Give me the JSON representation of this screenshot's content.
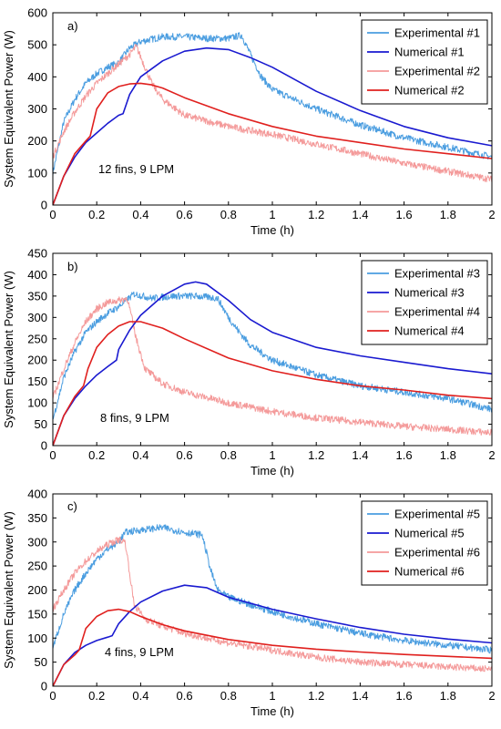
{
  "figure": {
    "panels": [
      {
        "label": "a)",
        "annotation": "12 fins, 9 LPM"
      },
      {
        "label": "b)",
        "annotation": "8 fins, 9 LPM"
      },
      {
        "label": "c)",
        "annotation": "4 fins, 9 LPM"
      }
    ],
    "colors": {
      "experimental_blue": "#4a9de0",
      "numerical_blue": "#1a1ad0",
      "experimental_red": "#f49a9a",
      "numerical_red": "#e0201e"
    }
  },
  "chart_data": [
    {
      "type": "line",
      "panel": "a)",
      "xlabel": "Time (h)",
      "ylabel": "System Equivalent Power (W)",
      "xlim": [
        0,
        2
      ],
      "ylim": [
        0,
        600
      ],
      "xticks": [
        "0",
        "0.2",
        "0.4",
        "0.6",
        "0.8",
        "1",
        "1.2",
        "1.4",
        "1.6",
        "1.8",
        "2"
      ],
      "yticks": [
        "0",
        "100",
        "200",
        "300",
        "400",
        "500",
        "600"
      ],
      "legend_position": "top-right",
      "annotation": "12 fins, 9 LPM",
      "series": [
        {
          "name": "Experimental #1",
          "color": "#4a9de0",
          "noisy": true,
          "x": [
            0,
            0.05,
            0.1,
            0.15,
            0.2,
            0.25,
            0.3,
            0.35,
            0.4,
            0.5,
            0.6,
            0.7,
            0.8,
            0.86,
            0.9,
            0.95,
            1.0,
            1.2,
            1.4,
            1.6,
            1.8,
            2.0
          ],
          "y": [
            100,
            260,
            330,
            380,
            410,
            430,
            445,
            490,
            510,
            525,
            525,
            520,
            520,
            530,
            470,
            400,
            360,
            300,
            250,
            210,
            180,
            150
          ]
        },
        {
          "name": "Numerical #1",
          "color": "#1a1ad0",
          "noisy": false,
          "x": [
            0,
            0.05,
            0.1,
            0.15,
            0.2,
            0.25,
            0.3,
            0.32,
            0.35,
            0.4,
            0.5,
            0.6,
            0.7,
            0.8,
            0.9,
            1.0,
            1.2,
            1.4,
            1.6,
            1.8,
            2.0
          ],
          "y": [
            0,
            90,
            150,
            195,
            225,
            255,
            280,
            285,
            345,
            400,
            450,
            480,
            490,
            485,
            460,
            430,
            355,
            295,
            245,
            210,
            185
          ]
        },
        {
          "name": "Experimental #2",
          "color": "#f49a9a",
          "noisy": true,
          "x": [
            0,
            0.05,
            0.1,
            0.15,
            0.2,
            0.25,
            0.3,
            0.35,
            0.38,
            0.42,
            0.45,
            0.5,
            0.6,
            0.8,
            1.0,
            1.2,
            1.4,
            1.6,
            1.8,
            2.0
          ],
          "y": [
            150,
            230,
            290,
            340,
            380,
            410,
            440,
            470,
            495,
            430,
            380,
            330,
            280,
            245,
            220,
            190,
            160,
            130,
            105,
            80
          ]
        },
        {
          "name": "Numerical #2",
          "color": "#e0201e",
          "noisy": false,
          "x": [
            0,
            0.05,
            0.1,
            0.15,
            0.17,
            0.2,
            0.25,
            0.3,
            0.35,
            0.4,
            0.45,
            0.5,
            0.6,
            0.8,
            1.0,
            1.2,
            1.4,
            1.6,
            1.8,
            2.0
          ],
          "y": [
            0,
            90,
            160,
            200,
            215,
            300,
            350,
            370,
            378,
            380,
            375,
            365,
            335,
            285,
            245,
            215,
            195,
            175,
            160,
            145
          ]
        }
      ]
    },
    {
      "type": "line",
      "panel": "b)",
      "xlabel": "Time (h)",
      "ylabel": "System Equivalent Power (W)",
      "xlim": [
        0,
        2
      ],
      "ylim": [
        0,
        450
      ],
      "xticks": [
        "0",
        "0.2",
        "0.4",
        "0.6",
        "0.8",
        "1",
        "1.2",
        "1.4",
        "1.6",
        "1.8",
        "2"
      ],
      "yticks": [
        "0",
        "50",
        "100",
        "150",
        "200",
        "250",
        "300",
        "350",
        "400",
        "450"
      ],
      "legend_position": "top-right",
      "annotation": "8 fins, 9 LPM",
      "series": [
        {
          "name": "Experimental #3",
          "color": "#4a9de0",
          "noisy": true,
          "x": [
            0,
            0.05,
            0.1,
            0.15,
            0.2,
            0.25,
            0.3,
            0.37,
            0.45,
            0.55,
            0.65,
            0.75,
            0.8,
            0.85,
            0.9,
            1.0,
            1.2,
            1.4,
            1.6,
            1.8,
            2.0
          ],
          "y": [
            60,
            160,
            220,
            265,
            290,
            310,
            325,
            355,
            345,
            350,
            350,
            345,
            300,
            265,
            235,
            200,
            165,
            140,
            125,
            110,
            85
          ]
        },
        {
          "name": "Numerical #3",
          "color": "#1a1ad0",
          "noisy": false,
          "x": [
            0,
            0.05,
            0.1,
            0.15,
            0.2,
            0.25,
            0.29,
            0.3,
            0.35,
            0.4,
            0.5,
            0.6,
            0.65,
            0.7,
            0.8,
            0.9,
            1.0,
            1.2,
            1.4,
            1.6,
            1.8,
            2.0
          ],
          "y": [
            0,
            70,
            110,
            140,
            165,
            185,
            200,
            225,
            270,
            305,
            350,
            378,
            383,
            378,
            340,
            295,
            265,
            230,
            210,
            195,
            180,
            168
          ]
        },
        {
          "name": "Experimental #4",
          "color": "#f49a9a",
          "noisy": true,
          "x": [
            0,
            0.05,
            0.1,
            0.15,
            0.2,
            0.25,
            0.3,
            0.34,
            0.38,
            0.42,
            0.5,
            0.6,
            0.8,
            1.0,
            1.2,
            1.4,
            1.6,
            1.8,
            2.0
          ],
          "y": [
            110,
            180,
            240,
            290,
            320,
            335,
            340,
            345,
            250,
            180,
            145,
            125,
            100,
            80,
            65,
            55,
            45,
            38,
            30
          ]
        },
        {
          "name": "Numerical #4",
          "color": "#e0201e",
          "noisy": false,
          "x": [
            0,
            0.05,
            0.1,
            0.14,
            0.16,
            0.2,
            0.25,
            0.3,
            0.35,
            0.4,
            0.5,
            0.6,
            0.8,
            1.0,
            1.2,
            1.4,
            1.6,
            1.8,
            2.0
          ],
          "y": [
            0,
            70,
            115,
            140,
            180,
            230,
            260,
            280,
            290,
            290,
            275,
            250,
            205,
            175,
            155,
            140,
            130,
            118,
            110
          ]
        }
      ]
    },
    {
      "type": "line",
      "panel": "c)",
      "xlabel": "Time (h)",
      "ylabel": "System Equivalent Power (W)",
      "xlim": [
        0,
        2
      ],
      "ylim": [
        0,
        400
      ],
      "xticks": [
        "0",
        "0.2",
        "0.4",
        "0.6",
        "0.8",
        "1",
        "1.2",
        "1.4",
        "1.6",
        "1.8",
        "2"
      ],
      "yticks": [
        "0",
        "50",
        "100",
        "150",
        "200",
        "250",
        "300",
        "350",
        "400"
      ],
      "legend_position": "top-right",
      "annotation": "4 fins, 9 LPM",
      "series": [
        {
          "name": "Experimental #5",
          "color": "#4a9de0",
          "noisy": true,
          "x": [
            0,
            0.05,
            0.1,
            0.15,
            0.2,
            0.25,
            0.3,
            0.33,
            0.4,
            0.5,
            0.6,
            0.68,
            0.72,
            0.75,
            0.8,
            1.0,
            1.2,
            1.4,
            1.6,
            1.8,
            2.0
          ],
          "y": [
            80,
            150,
            200,
            235,
            265,
            285,
            300,
            320,
            325,
            330,
            320,
            315,
            240,
            200,
            185,
            155,
            130,
            110,
            95,
            85,
            75
          ]
        },
        {
          "name": "Numerical #5",
          "color": "#1a1ad0",
          "noisy": false,
          "x": [
            0,
            0.05,
            0.1,
            0.15,
            0.2,
            0.25,
            0.27,
            0.3,
            0.35,
            0.4,
            0.5,
            0.6,
            0.7,
            0.8,
            1.0,
            1.2,
            1.4,
            1.6,
            1.8,
            2.0
          ],
          "y": [
            0,
            45,
            70,
            85,
            95,
            102,
            105,
            130,
            155,
            175,
            198,
            210,
            205,
            185,
            160,
            140,
            122,
            108,
            98,
            90
          ]
        },
        {
          "name": "Experimental #6",
          "color": "#f49a9a",
          "noisy": true,
          "x": [
            0,
            0.05,
            0.1,
            0.15,
            0.2,
            0.25,
            0.3,
            0.33,
            0.37,
            0.42,
            0.5,
            0.6,
            0.8,
            1.0,
            1.2,
            1.4,
            1.6,
            1.8,
            2.0
          ],
          "y": [
            160,
            200,
            235,
            260,
            280,
            295,
            305,
            300,
            170,
            140,
            125,
            110,
            90,
            75,
            60,
            50,
            45,
            40,
            35
          ]
        },
        {
          "name": "Numerical #6",
          "color": "#e0201e",
          "noisy": false,
          "x": [
            0,
            0.05,
            0.1,
            0.12,
            0.15,
            0.2,
            0.25,
            0.3,
            0.35,
            0.4,
            0.5,
            0.6,
            0.8,
            1.0,
            1.2,
            1.4,
            1.6,
            1.8,
            2.0
          ],
          "y": [
            0,
            45,
            65,
            75,
            120,
            145,
            157,
            160,
            155,
            145,
            128,
            115,
            97,
            85,
            77,
            71,
            66,
            62,
            58
          ]
        }
      ]
    }
  ]
}
